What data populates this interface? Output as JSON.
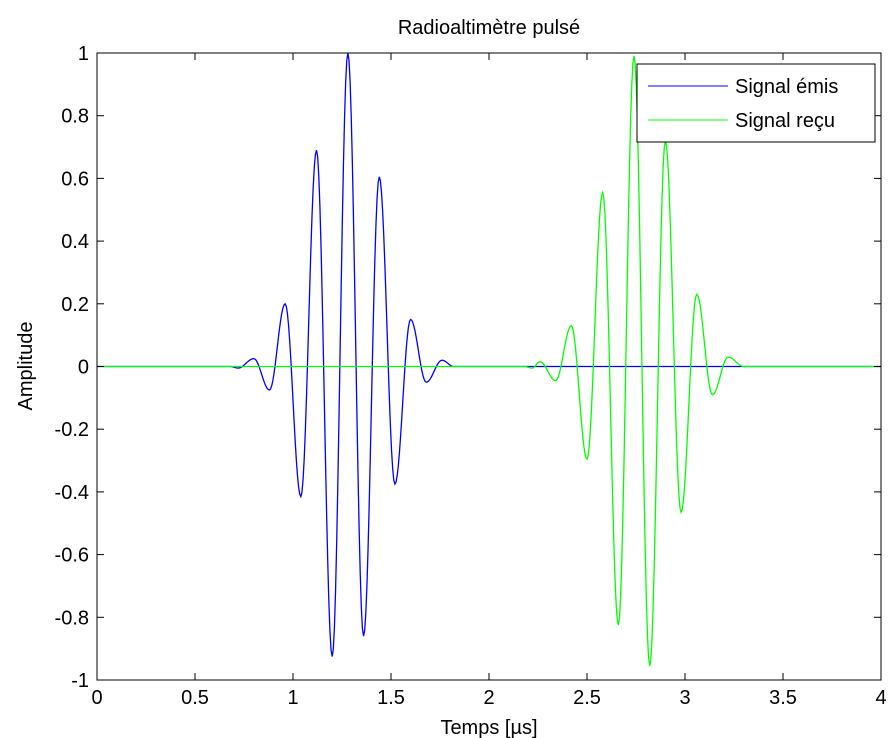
{
  "chart_data": {
    "type": "line",
    "title": "Radioaltimètre pulsé",
    "xlabel": "Temps [µs]",
    "ylabel": "Amplitude",
    "xlim": [
      0,
      4
    ],
    "ylim": [
      -1,
      1
    ],
    "x_ticks": [
      0,
      0.5,
      1,
      1.5,
      2,
      2.5,
      3,
      3.5,
      4
    ],
    "x_tick_labels": [
      "0",
      "0.5",
      "1",
      "1.5",
      "2",
      "2.5",
      "3",
      "3.5",
      "4"
    ],
    "y_ticks": [
      -1,
      -0.8,
      -0.6,
      -0.4,
      -0.2,
      0,
      0.2,
      0.4,
      0.6,
      0.8,
      1
    ],
    "y_tick_labels": [
      "-1",
      "-0.8",
      "-0.6",
      "-0.4",
      "-0.2",
      "0",
      "0.2",
      "0.4",
      "0.6",
      "0.8",
      "1"
    ],
    "grid": false,
    "legend_position": "top-right",
    "series": [
      {
        "name": "Signal émis",
        "color": "#0000ff",
        "points": [
          [
            0,
            0
          ],
          [
            0.68,
            0
          ],
          [
            0.72,
            -0.005
          ],
          [
            0.8,
            0.025
          ],
          [
            0.88,
            -0.075
          ],
          [
            0.96,
            0.2
          ],
          [
            1.04,
            -0.415
          ],
          [
            1.12,
            0.69
          ],
          [
            1.2,
            -0.925
          ],
          [
            1.28,
            1.0
          ],
          [
            1.36,
            -0.86
          ],
          [
            1.44,
            0.605
          ],
          [
            1.52,
            -0.375
          ],
          [
            1.6,
            0.15
          ],
          [
            1.68,
            -0.05
          ],
          [
            1.76,
            0.02
          ],
          [
            1.82,
            0
          ],
          [
            4,
            0
          ]
        ]
      },
      {
        "name": "Signal reçu",
        "color": "#00ff00",
        "points": [
          [
            0,
            0
          ],
          [
            2.18,
            0
          ],
          [
            2.22,
            -0.005
          ],
          [
            2.26,
            0.015
          ],
          [
            2.34,
            -0.045
          ],
          [
            2.42,
            0.13
          ],
          [
            2.5,
            -0.295
          ],
          [
            2.58,
            0.555
          ],
          [
            2.66,
            -0.825
          ],
          [
            2.74,
            0.99
          ],
          [
            2.82,
            -0.955
          ],
          [
            2.9,
            0.72
          ],
          [
            2.98,
            -0.465
          ],
          [
            3.06,
            0.23
          ],
          [
            3.14,
            -0.09
          ],
          [
            3.22,
            0.03
          ],
          [
            3.3,
            0
          ],
          [
            4,
            0
          ]
        ]
      }
    ]
  }
}
